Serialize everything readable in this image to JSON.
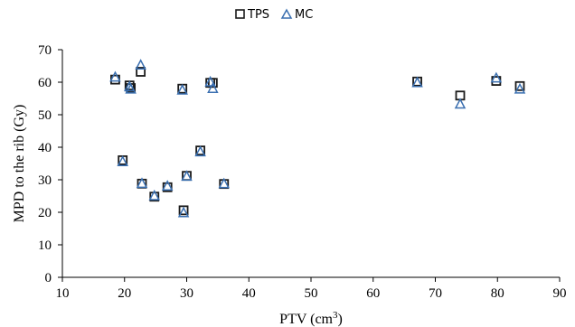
{
  "chart_data": {
    "type": "scatter",
    "title": "",
    "xlabel": "PTV (cm",
    "xlabel_sup": "3",
    "xlabel_end": ")",
    "ylabel": "MPD to the rib (Gy)",
    "xlim": [
      10,
      90
    ],
    "ylim": [
      0,
      70
    ],
    "xticks": [
      "10",
      "20",
      "30",
      "40",
      "50",
      "60",
      "70",
      "80",
      "90"
    ],
    "yticks": [
      "0",
      "10",
      "20",
      "30",
      "40",
      "50",
      "60",
      "70"
    ],
    "grid": false,
    "legend_position": "top-center",
    "series": [
      {
        "name": "TPS",
        "marker": "square",
        "color": "#1a1a1a",
        "points": [
          [
            18.5,
            60.8
          ],
          [
            20.8,
            59.0
          ],
          [
            21.0,
            58.2
          ],
          [
            22.6,
            63.2
          ],
          [
            29.3,
            58.0
          ],
          [
            33.8,
            59.8
          ],
          [
            34.2,
            59.8
          ],
          [
            19.7,
            36.0
          ],
          [
            22.8,
            28.8
          ],
          [
            24.8,
            24.8
          ],
          [
            26.9,
            27.7
          ],
          [
            29.5,
            20.6
          ],
          [
            30.0,
            31.2
          ],
          [
            32.2,
            39.0
          ],
          [
            36.0,
            28.7
          ],
          [
            67.1,
            60.2
          ],
          [
            74.0,
            55.9
          ],
          [
            79.8,
            60.4
          ],
          [
            83.6,
            58.8
          ]
        ]
      },
      {
        "name": "MC",
        "marker": "triangle",
        "color": "#3a6fb0",
        "points": [
          [
            18.5,
            61.5
          ],
          [
            20.8,
            58.5
          ],
          [
            21.0,
            57.8
          ],
          [
            22.6,
            65.2
          ],
          [
            29.3,
            57.5
          ],
          [
            33.8,
            60.0
          ],
          [
            34.2,
            58.0
          ],
          [
            19.7,
            35.5
          ],
          [
            22.8,
            28.8
          ],
          [
            24.8,
            25.0
          ],
          [
            26.9,
            28.0
          ],
          [
            29.5,
            19.8
          ],
          [
            30.0,
            31.0
          ],
          [
            32.2,
            38.5
          ],
          [
            36.0,
            28.7
          ],
          [
            67.1,
            59.8
          ],
          [
            74.0,
            53.2
          ],
          [
            79.8,
            61.2
          ],
          [
            83.6,
            57.8
          ]
        ]
      }
    ]
  }
}
